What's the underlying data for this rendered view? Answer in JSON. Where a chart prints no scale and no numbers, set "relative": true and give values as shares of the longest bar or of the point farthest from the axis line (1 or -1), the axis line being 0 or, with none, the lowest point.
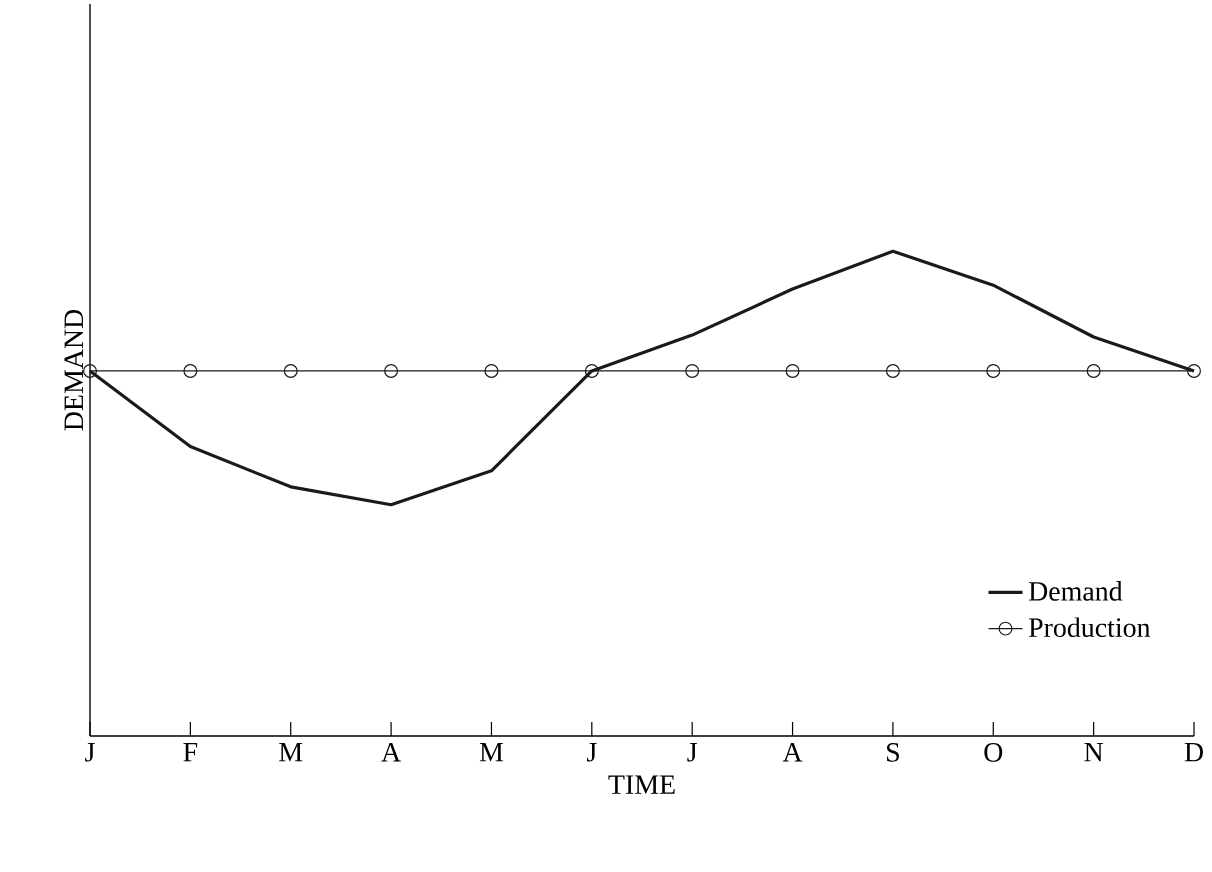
{
  "chart_data": {
    "type": "line",
    "relative": true,
    "xlabel": "TIME",
    "ylabel": "DEMAND",
    "categories": [
      "J",
      "F",
      "M",
      "A",
      "M",
      "J",
      "J",
      "A",
      "S",
      "O",
      "N",
      "D"
    ],
    "series": [
      {
        "name": "Demand",
        "color": "#1a1a1a",
        "marker": "none",
        "values": [
          0.753,
          0.597,
          0.514,
          0.477,
          0.547,
          0.753,
          0.827,
          0.922,
          1,
          0.93,
          0.823,
          0.753
        ]
      },
      {
        "name": "Production",
        "color": "#1a1a1a",
        "marker": "circle",
        "values": [
          0.753,
          0.753,
          0.753,
          0.753,
          0.753,
          0.753,
          0.753,
          0.753,
          0.753,
          0.753,
          0.753,
          0.753
        ]
      }
    ],
    "legend": "bottom right",
    "grid": false
  }
}
